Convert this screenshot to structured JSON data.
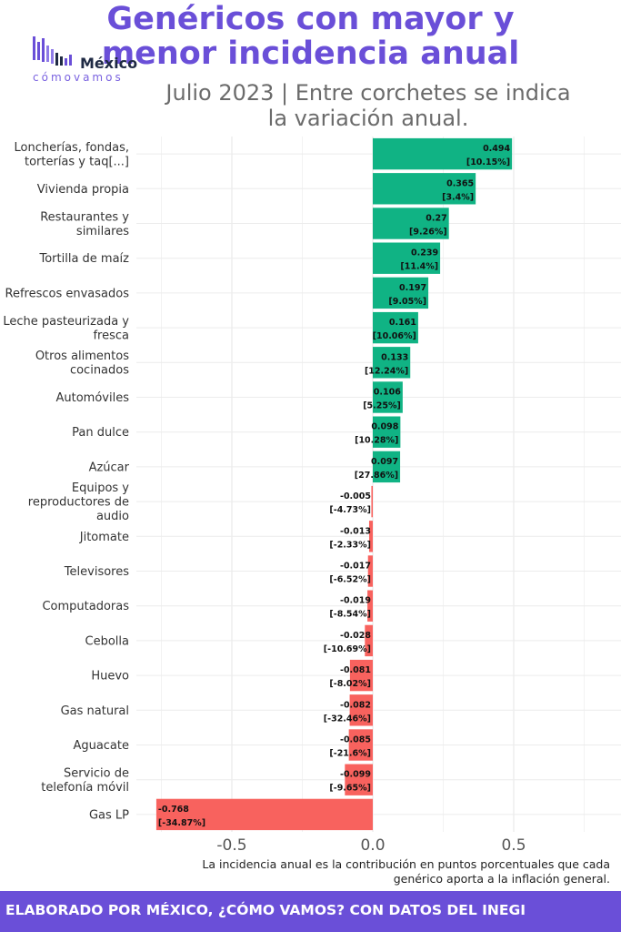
{
  "title_lines": [
    "Genéricos con mayor y",
    "menor incidencia anual"
  ],
  "subtitle_lines": [
    "Julio 2023 | Entre corchetes se indica",
    "la variación anual."
  ],
  "logo": {
    "word": "México",
    "sub": "cómovamos"
  },
  "note_lines": [
    "La incidencia anual es la contribución en puntos porcentuales que cada",
    "genérico aporta a la inflación general."
  ],
  "footer": "ELABORADO POR MÉXICO, ¿CÓMO VAMOS? CON DATOS DEL INEGI",
  "colors": {
    "positive": "#10b384",
    "negative": "#f8625e",
    "accent": "#6a4fd8"
  },
  "chart_data": {
    "type": "bar",
    "orientation": "horizontal",
    "xlim": [
      -0.85,
      0.85
    ],
    "x_ticks": [
      "-0.5",
      "0.0",
      "0.5"
    ],
    "x_tick_values": [
      -0.5,
      0.0,
      0.5
    ],
    "grid": true,
    "categories": [
      [
        "Loncherías, fondas,",
        "torterías y taq[...]"
      ],
      [
        "Vivienda propia"
      ],
      [
        "Restaurantes y",
        "similares"
      ],
      [
        "Tortilla de maíz"
      ],
      [
        "Refrescos envasados"
      ],
      [
        "Leche pasteurizada y",
        "fresca"
      ],
      [
        "Otros alimentos",
        "cocinados"
      ],
      [
        "Automóviles"
      ],
      [
        "Pan dulce"
      ],
      [
        "Azúcar"
      ],
      [
        "Equipos y",
        "reproductores de",
        "audio"
      ],
      [
        "Jitomate"
      ],
      [
        "Televisores"
      ],
      [
        "Computadoras"
      ],
      [
        "Cebolla"
      ],
      [
        "Huevo"
      ],
      [
        "Gas natural"
      ],
      [
        "Aguacate"
      ],
      [
        "Servicio de",
        "telefonía móvil"
      ],
      [
        "Gas LP"
      ]
    ],
    "values": [
      0.494,
      0.365,
      0.27,
      0.239,
      0.197,
      0.161,
      0.133,
      0.106,
      0.098,
      0.097,
      -0.005,
      -0.013,
      -0.017,
      -0.019,
      -0.028,
      -0.081,
      -0.082,
      -0.085,
      -0.099,
      -0.768
    ],
    "value_labels": [
      "0.494",
      "0.365",
      "0.27",
      "0.239",
      "0.197",
      "0.161",
      "0.133",
      "0.106",
      "0.098",
      "0.097",
      "-0.005",
      "-0.013",
      "-0.017",
      "-0.019",
      "-0.028",
      "-0.081",
      "-0.082",
      "-0.085",
      "-0.099",
      "-0.768"
    ],
    "variation_labels": [
      "[10.15%]",
      "[3.4%]",
      "[9.26%]",
      "[11.4%]",
      "[9.05%]",
      "[10.06%]",
      "[12.24%]",
      "[5.25%]",
      "[10.28%]",
      "[27.86%]",
      "[-4.73%]",
      "[-2.33%]",
      "[-6.52%]",
      "[-8.54%]",
      "[-10.69%]",
      "[-8.02%]",
      "[-32.46%]",
      "[-21.6%]",
      "[-9.65%]",
      "[-34.87%]"
    ]
  }
}
